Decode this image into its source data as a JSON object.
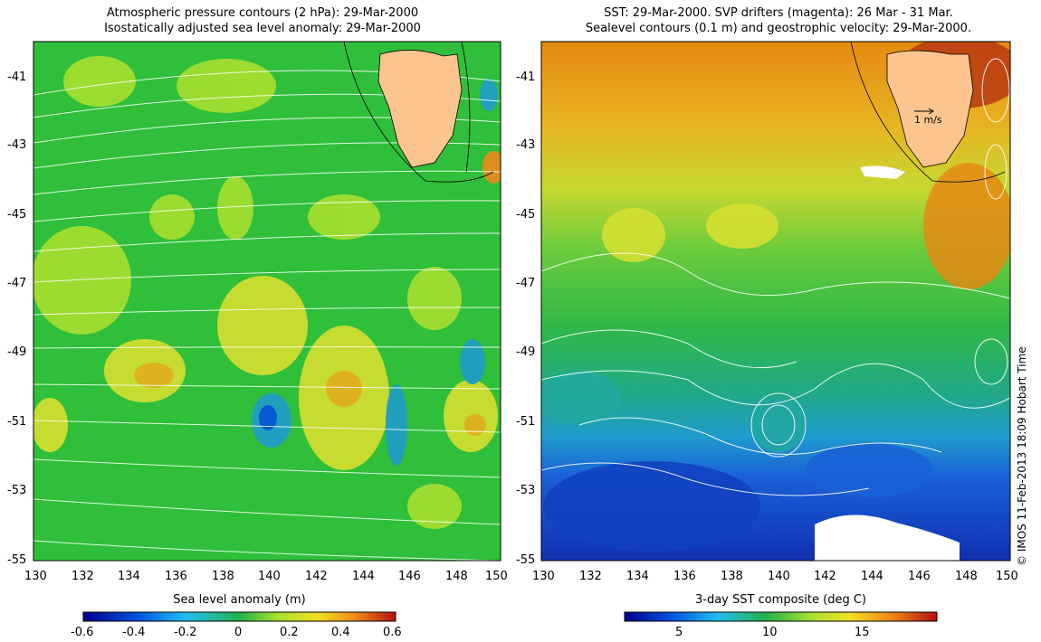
{
  "left_panel": {
    "title_line1": "Atmospheric pressure contours (2 hPa): 29-Mar-2000",
    "title_line2": "Isostatically adjusted sea level anomaly: 29-Mar-2000",
    "x_ticks": [
      "130",
      "132",
      "134",
      "136",
      "138",
      "140",
      "142",
      "144",
      "146",
      "148",
      "150"
    ],
    "y_ticks": [
      "-41",
      "-43",
      "-45",
      "-47",
      "-49",
      "-51",
      "-53",
      "-55"
    ],
    "colorbar_label": "Sea level anomaly (m)",
    "colorbar_ticks": [
      "-0.6",
      "-0.4",
      "-0.2",
      "0",
      "0.2",
      "0.4",
      "0.6"
    ]
  },
  "right_panel": {
    "title_line1": "SST: 29-Mar-2000. SVP drifters (magenta): 26 Mar - 31 Mar.",
    "title_line2": "Sealevel contours (0.1 m) and geostrophic velocity: 29-Mar-2000.",
    "x_ticks": [
      "130",
      "132",
      "134",
      "136",
      "138",
      "140",
      "142",
      "144",
      "146",
      "148",
      "150"
    ],
    "y_ticks": [
      "-41",
      "-43",
      "-45",
      "-47",
      "-49",
      "-51",
      "-53",
      "-55"
    ],
    "velocity_scale_label": "1 m/s",
    "colorbar_label": "3-day SST composite (deg C)",
    "colorbar_ticks": [
      "5",
      "10",
      "15"
    ]
  },
  "credit": "© IMOS 11-Feb-2013 18:09 Hobart Time",
  "colors": {
    "land": "#fcc58f",
    "map_green": "#2fbf3a",
    "sst_blue": "#1a4fd0",
    "sst_orange": "#e58a12",
    "contour": "#ffffff"
  }
}
